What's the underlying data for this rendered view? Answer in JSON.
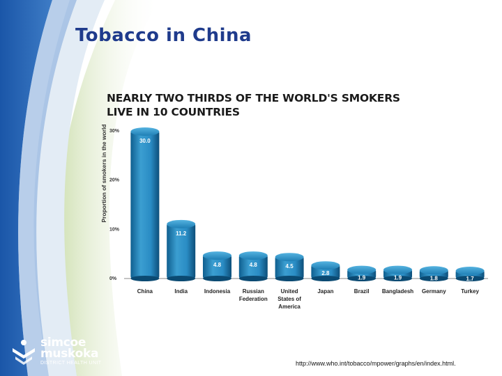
{
  "slide": {
    "title": "Tobacco in China",
    "source": "http://www.who.int/tobacco/mpower/graphs/en/index.html."
  },
  "logo": {
    "line1": "simcoe",
    "line2": "muskoka",
    "unit": "DISTRICT HEALTH UNIT"
  },
  "colors": {
    "title": "#1f3b8c",
    "brand_blue": "#1a56a8",
    "bar_light": "#3b9ed1",
    "bar_dark": "#0f5f8f",
    "bar_top": "#2a8cc4"
  },
  "chart_data": {
    "type": "bar",
    "title": [
      "NEARLY TWO THIRDS OF THE WORLD'S SMOKERS",
      "LIVE IN 10 COUNTRIES"
    ],
    "ylabel": "Proportion of smokers in the world",
    "ylim": [
      0,
      30
    ],
    "yticks": [
      "0%",
      "10%",
      "20%",
      "30%"
    ],
    "categories": [
      [
        "China"
      ],
      [
        "India"
      ],
      [
        "Indonesia"
      ],
      [
        "Russian",
        "Federation"
      ],
      [
        "United",
        "States of",
        "America"
      ],
      [
        "Japan"
      ],
      [
        "Brazil"
      ],
      [
        "Bangladesh"
      ],
      [
        "Germany"
      ],
      [
        "Turkey"
      ]
    ],
    "values": [
      30.0,
      11.2,
      4.8,
      4.8,
      4.5,
      2.8,
      1.9,
      1.9,
      1.8,
      1.7
    ],
    "value_labels": [
      "30.0",
      "11.2",
      "4.8",
      "4.8",
      "4.5",
      "2.8",
      "1.9",
      "1.9",
      "1.8",
      "1.7"
    ]
  }
}
